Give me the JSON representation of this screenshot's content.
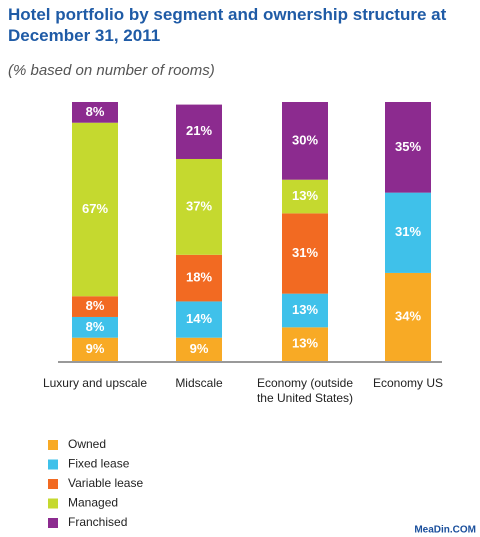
{
  "chart_data": {
    "type": "stacked_bar",
    "title": "Hotel portfolio by segment and ownership structure at December 31, 2011",
    "subtitle": "(% based on number of rooms)",
    "categories": [
      "Luxury and upscale",
      "Midscale",
      "Economy (outside the United States)",
      "Economy US"
    ],
    "series": [
      {
        "name": "Owned",
        "color": "#f8aa25",
        "values": [
          9,
          9,
          13,
          34
        ],
        "value_labels": [
          "9%",
          "9%",
          "13%",
          "34%"
        ]
      },
      {
        "name": "Fixed lease",
        "color": "#3fc1ea",
        "values": [
          8,
          14,
          13,
          31
        ],
        "value_labels": [
          "8%",
          "14%",
          "13%",
          "31%"
        ]
      },
      {
        "name": "Variable lease",
        "color": "#f26a22",
        "values": [
          8,
          18,
          31,
          null
        ],
        "value_labels": [
          "8%",
          "18%",
          "31%",
          null
        ]
      },
      {
        "name": "Managed",
        "color": "#c5d92f",
        "values": [
          67,
          37,
          13,
          null
        ],
        "value_labels": [
          "67%",
          "37%",
          "13%",
          null
        ]
      },
      {
        "name": "Franchised",
        "color": "#8c2b8f",
        "values": [
          8,
          21,
          30,
          35
        ],
        "value_labels": [
          "8%",
          "21%",
          "30%",
          "35%"
        ]
      }
    ],
    "ylim": [
      0,
      100
    ],
    "watermark": "MeaDin.COM"
  }
}
